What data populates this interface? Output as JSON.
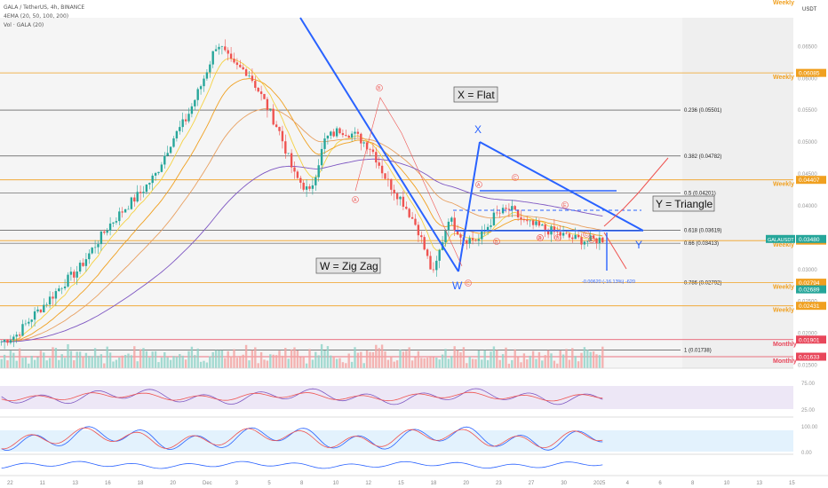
{
  "header": {
    "symbol_line": "GALA / TetherUS, 4h, BINANCE",
    "ema_line": "4EMA (20, 50, 100, 200)",
    "vol_line": "Vol · GALA (20)"
  },
  "price_axis": {
    "currency": "USDT",
    "ticks": [
      "0.06500",
      "0.06000",
      "0.05500",
      "0.05000",
      "0.04500",
      "0.04000",
      "0.03500",
      "0.03000",
      "0.02500",
      "0.02000",
      "0.01500"
    ],
    "indicator_ticks": [
      "75.00",
      "25.00",
      "100.00",
      "0.00"
    ]
  },
  "time_axis": {
    "ticks": [
      "22",
      "11",
      "13",
      "16",
      "18",
      "20",
      "Dec",
      "3",
      "5",
      "8",
      "10",
      "12",
      "15",
      "18",
      "20",
      "23",
      "27",
      "30",
      "2025",
      "4",
      "6",
      "8",
      "10",
      "13",
      "15"
    ]
  },
  "chart_data": {
    "type": "candlestick",
    "symbol": "GALA/USDT",
    "timeframe": "4h",
    "exchange": "BINANCE",
    "ylim": [
      0.0148,
      0.0695
    ],
    "last_price": 0.0348,
    "close_path_keypoints": [
      0.0187,
      0.0198,
      0.0226,
      0.0251,
      0.0278,
      0.03,
      0.0336,
      0.037,
      0.0396,
      0.042,
      0.0449,
      0.0501,
      0.0537,
      0.0592,
      0.0657,
      0.062,
      0.061,
      0.0566,
      0.0518,
      0.0448,
      0.042,
      0.0505,
      0.052,
      0.051,
      0.049,
      0.044,
      0.0408,
      0.0365,
      0.029,
      0.0382,
      0.0348,
      0.0347,
      0.0385,
      0.0395,
      0.0372,
      0.0366,
      0.0357,
      0.0349,
      0.0345,
      0.0348
    ],
    "fib_levels": [
      {
        "label": "0.236 (0.05501)",
        "value": 0.05501
      },
      {
        "label": "0.382 (0.04782)",
        "value": 0.04782
      },
      {
        "label": "0.5 (0.04201)",
        "value": 0.04201
      },
      {
        "label": "0.618 (0.03619)",
        "value": 0.03619
      },
      {
        "label": "0.66 (0.03413)",
        "value": 0.03413
      },
      {
        "label": "0.786 (0.02792)",
        "value": 0.02792
      },
      {
        "label": "1 (0.01738)",
        "value": 0.01738
      }
    ],
    "sr_levels": [
      {
        "label": "Weekly",
        "value": 0.06085,
        "price": "0.06085",
        "color": "#f0a020"
      },
      {
        "label": "Weekly",
        "value": 0.04407,
        "price": "0.04407",
        "color": "#f0a020"
      },
      {
        "label": "Weekly",
        "value": 0.03454,
        "price": "0.03454",
        "color": "#f0a020"
      },
      {
        "label": "Weekly",
        "value": 0.02794,
        "price": "0.02794",
        "color": "#f0a020"
      },
      {
        "label": "Weekly",
        "value": 0.02431,
        "price": "0.02431",
        "color": "#f0a020"
      },
      {
        "label": "Monthly",
        "value": 0.01901,
        "price": "0.01901",
        "color": "#e8465a"
      },
      {
        "label": "Monthly",
        "value": 0.01633,
        "price": "0.01633",
        "color": "#e8465a"
      }
    ],
    "extra_price_badges": [
      {
        "price": "0.03480",
        "label": "GALAUSDT",
        "color": "#26a69a"
      },
      {
        "price": "0.02689",
        "label": "",
        "color": "#26a69a"
      }
    ],
    "top_label": "Weekly",
    "annotations": {
      "flat": "X = Flat",
      "triangle": "Y = Triangle",
      "zigzag": "W = Zig Zag",
      "wave_w": "W",
      "wave_x": "X",
      "wave_y": "Y",
      "measure": "-0.00620 (-16.13%) -620",
      "circled": [
        "A",
        "B",
        "C",
        "A",
        "B",
        "C",
        "D",
        "E",
        "A",
        "B",
        "C",
        "E"
      ]
    },
    "ema_colors": [
      "#f5d142",
      "#f0a020",
      "#e8a060",
      "#7e57c2"
    ]
  },
  "colors": {
    "up": "#26a69a",
    "down": "#ef5350",
    "pattern": "#2962ff",
    "weekly": "#f0a020",
    "monthly": "#e8465a"
  }
}
